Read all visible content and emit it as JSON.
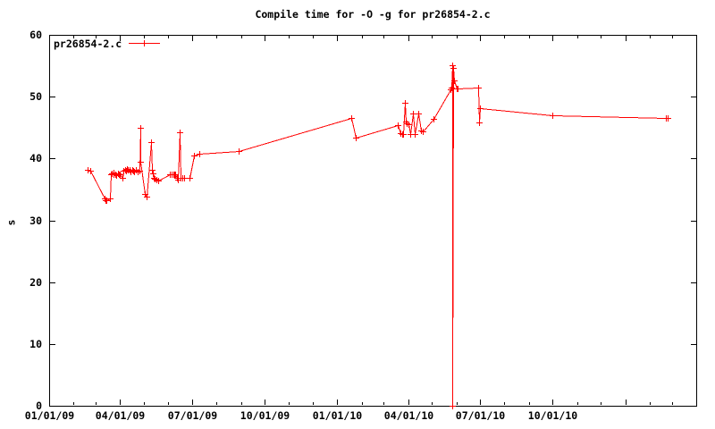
{
  "chart_data": {
    "type": "line",
    "title": "Compile time for -O -g for pr26854-2.c",
    "xlabel": "",
    "ylabel": "s",
    "ylim": [
      0,
      60
    ],
    "x_range": [
      "2009-01-01",
      "2011-04-01"
    ],
    "grid": false,
    "colors": {
      "series": "#ff0000",
      "axis": "#000000",
      "background": "#ffffff"
    },
    "legend": {
      "position": "top-left-inside",
      "entries": [
        {
          "label": "pr26854-2.c",
          "color": "#ff0000",
          "marker": "plus"
        }
      ]
    },
    "yticks": [
      {
        "value": 0,
        "label": "0"
      },
      {
        "value": 10,
        "label": "10"
      },
      {
        "value": 20,
        "label": "20"
      },
      {
        "value": 30,
        "label": "30"
      },
      {
        "value": 40,
        "label": "40"
      },
      {
        "value": 50,
        "label": "50"
      },
      {
        "value": 60,
        "label": "60"
      }
    ],
    "xticks": [
      {
        "date": "2009-01-01",
        "label": "01/01/09"
      },
      {
        "date": "2009-04-01",
        "label": "04/01/09"
      },
      {
        "date": "2009-07-01",
        "label": "07/01/09"
      },
      {
        "date": "2009-10-01",
        "label": "10/01/09"
      },
      {
        "date": "2010-01-01",
        "label": "01/01/10"
      },
      {
        "date": "2010-04-01",
        "label": "04/01/10"
      },
      {
        "date": "2010-07-01",
        "label": "07/01/10"
      },
      {
        "date": "2010-10-01",
        "label": "10/01/10"
      },
      {
        "date": "2011-01-01",
        "label": ""
      }
    ],
    "series": [
      {
        "name": "pr26854-2.c",
        "color": "#ff0000",
        "marker": "plus",
        "points": [
          [
            "2009-02-19",
            38.1
          ],
          [
            "2009-02-22",
            38.0
          ],
          [
            "2009-03-12",
            33.5
          ],
          [
            "2009-03-13",
            33.3
          ],
          [
            "2009-03-15",
            33.2
          ],
          [
            "2009-03-19",
            33.6
          ],
          [
            "2009-03-20",
            37.5
          ],
          [
            "2009-03-21",
            37.6
          ],
          [
            "2009-03-23",
            37.4
          ],
          [
            "2009-03-24",
            37.7
          ],
          [
            "2009-03-26",
            37.5
          ],
          [
            "2009-03-27",
            37.3
          ],
          [
            "2009-03-29",
            37.6
          ],
          [
            "2009-03-30",
            37.5
          ],
          [
            "2009-04-01",
            37.4
          ],
          [
            "2009-04-04",
            36.8
          ],
          [
            "2009-04-05",
            38.0
          ],
          [
            "2009-04-07",
            38.2
          ],
          [
            "2009-04-08",
            38.0
          ],
          [
            "2009-04-10",
            38.3
          ],
          [
            "2009-04-11",
            38.1
          ],
          [
            "2009-04-13",
            38.2
          ],
          [
            "2009-04-14",
            37.9
          ],
          [
            "2009-04-16",
            38.1
          ],
          [
            "2009-04-18",
            38.0
          ],
          [
            "2009-04-19",
            37.9
          ],
          [
            "2009-04-21",
            38.1
          ],
          [
            "2009-04-23",
            37.9
          ],
          [
            "2009-04-25",
            38.0
          ],
          [
            "2009-04-26",
            44.9
          ],
          [
            "2009-04-27",
            39.4
          ],
          [
            "2009-05-02",
            34.2
          ],
          [
            "2009-05-04",
            33.9
          ],
          [
            "2009-05-10",
            42.6
          ],
          [
            "2009-05-11",
            38.2
          ],
          [
            "2009-05-12",
            37.6
          ],
          [
            "2009-05-13",
            36.9
          ],
          [
            "2009-05-15",
            36.7
          ],
          [
            "2009-05-17",
            36.6
          ],
          [
            "2009-05-19",
            36.5
          ],
          [
            "2009-06-03",
            37.4
          ],
          [
            "2009-06-05",
            37.5
          ],
          [
            "2009-06-07",
            37.4
          ],
          [
            "2009-06-08",
            37.5
          ],
          [
            "2009-06-10",
            37.4
          ],
          [
            "2009-06-12",
            36.9
          ],
          [
            "2009-06-13",
            36.6
          ],
          [
            "2009-06-15",
            44.2
          ],
          [
            "2009-06-17",
            36.9
          ],
          [
            "2009-06-19",
            36.9
          ],
          [
            "2009-06-21",
            36.8
          ],
          [
            "2009-06-28",
            36.8
          ],
          [
            "2009-07-03",
            40.5
          ],
          [
            "2009-07-10",
            40.8
          ],
          [
            "2009-08-29",
            41.2
          ],
          [
            "2010-01-19",
            46.6
          ],
          [
            "2010-01-25",
            43.4
          ],
          [
            "2010-03-19",
            45.4
          ],
          [
            "2010-03-22",
            44.1
          ],
          [
            "2010-03-24",
            44.0
          ],
          [
            "2010-03-25",
            44.0
          ],
          [
            "2010-03-28",
            49.0
          ],
          [
            "2010-03-29",
            46.0
          ],
          [
            "2010-03-30",
            45.7
          ],
          [
            "2010-04-01",
            45.6
          ],
          [
            "2010-04-04",
            43.9
          ],
          [
            "2010-04-07",
            47.3
          ],
          [
            "2010-04-09",
            43.9
          ],
          [
            "2010-04-14",
            47.3
          ],
          [
            "2010-04-17",
            44.6
          ],
          [
            "2010-04-19",
            44.4
          ],
          [
            "2010-05-03",
            46.4
          ],
          [
            "2010-05-24",
            51.2
          ],
          [
            "2010-05-26",
            51.4
          ],
          [
            "2010-05-27",
            55.1
          ],
          [
            "2010-05-27T05",
            0.0
          ],
          [
            "2010-05-28",
            54.6
          ],
          [
            "2010-05-29T12",
            52.6
          ],
          [
            "2010-06-01",
            51.3
          ],
          [
            "2010-06-03",
            51.3
          ],
          [
            "2010-06-29",
            51.5
          ],
          [
            "2010-06-30",
            45.9
          ],
          [
            "2010-07-01",
            48.1
          ],
          [
            "2010-10-01",
            47.0
          ],
          [
            "2011-02-22",
            46.6
          ],
          [
            "2011-02-24",
            46.5
          ]
        ]
      }
    ]
  }
}
